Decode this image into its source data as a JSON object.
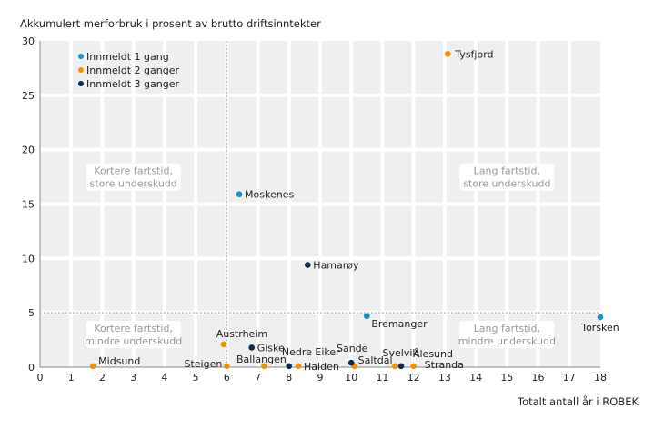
{
  "chart_data": {
    "type": "scatter",
    "ylabel": "Akkumulert merforbruk i prosent av brutto driftsinntekter",
    "xlabel": "Totalt antall år i ROBEK",
    "xlim": [
      0,
      18
    ],
    "ylim": [
      0,
      30
    ],
    "xticks": [
      0,
      1,
      2,
      3,
      4,
      5,
      6,
      7,
      8,
      9,
      10,
      11,
      12,
      13,
      14,
      15,
      16,
      17,
      18
    ],
    "yticks": [
      0,
      5,
      10,
      15,
      20,
      25,
      30
    ],
    "grid": true,
    "reference_lines": {
      "x": 6,
      "y": 5
    },
    "legend_position": "top-left",
    "series": [
      {
        "name": "Innmeldt 1 gang",
        "color": "#1a8fc9",
        "points": [
          {
            "label": "Moskenes",
            "x": 6.4,
            "y": 15.9
          },
          {
            "label": "Bremanger",
            "x": 10.5,
            "y": 4.7
          },
          {
            "label": "Torsken",
            "x": 18.0,
            "y": 4.6
          }
        ]
      },
      {
        "name": "Innmeldt 2 ganger",
        "color": "#f39200",
        "points": [
          {
            "label": "Tysfjord",
            "x": 13.1,
            "y": 28.8
          },
          {
            "label": "Austrheim",
            "x": 5.9,
            "y": 2.1
          },
          {
            "label": "Midsund",
            "x": 1.7,
            "y": 0.1
          },
          {
            "label": "Steigen",
            "x": 6.0,
            "y": 0.1
          },
          {
            "label": "Ballangen",
            "x": 7.2,
            "y": 0.1
          },
          {
            "label": "Halden",
            "x": 8.3,
            "y": 0.1
          },
          {
            "label": "Saltdal",
            "x": 10.1,
            "y": 0.1
          },
          {
            "label": "Svelvik",
            "x": 11.4,
            "y": 0.1
          },
          {
            "label": "Stranda",
            "x": 12.0,
            "y": 0.1
          }
        ]
      },
      {
        "name": "Innmeldt 3 ganger",
        "color": "#0d2a4d",
        "points": [
          {
            "label": "Hamarøy",
            "x": 8.6,
            "y": 9.4
          },
          {
            "label": "Giske",
            "x": 6.8,
            "y": 1.8
          },
          {
            "label": "Nedre Eiker",
            "x": 8.0,
            "y": 0.1
          },
          {
            "label": "Sande",
            "x": 10.0,
            "y": 0.4
          },
          {
            "label": "Ålesund",
            "x": 11.6,
            "y": 0.1
          }
        ]
      }
    ],
    "annotations": [
      {
        "text": [
          "Kortere fartstid,",
          "store underskudd"
        ],
        "x": 3,
        "y": 17.5
      },
      {
        "text": [
          "Lang fartstid,",
          "store underskudd"
        ],
        "x": 15,
        "y": 17.5
      },
      {
        "text": [
          "Kortere fartstid,",
          "mindre underskudd"
        ],
        "x": 3,
        "y": 3
      },
      {
        "text": [
          "Lang fartstid,",
          "mindre underskudd"
        ],
        "x": 15,
        "y": 3
      }
    ]
  }
}
